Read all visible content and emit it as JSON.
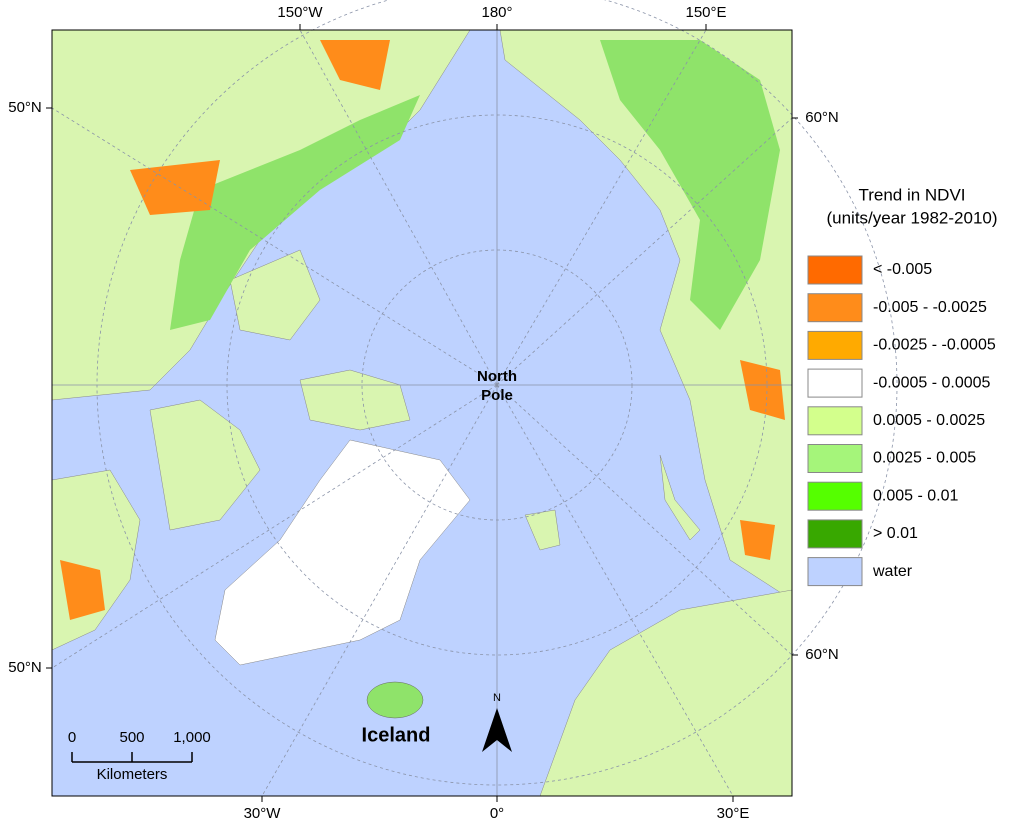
{
  "map": {
    "top_labels": [
      "150°W",
      "180°",
      "150°E"
    ],
    "bottom_labels": [
      "30°W",
      "0°",
      "30°E"
    ],
    "left_labels": [
      "50°N",
      "50°N"
    ],
    "right_labels": [
      "60°N",
      "60°N"
    ],
    "pole_label": [
      "North",
      "Pole"
    ],
    "place_label": "Iceland",
    "north_arrow": "N",
    "scale_bar": {
      "ticks": [
        "0",
        "500",
        "1,000"
      ],
      "unit": "Kilometers"
    },
    "legend": {
      "title": [
        "Trend in NDVI",
        "(units/year 1982-2010)"
      ],
      "items": [
        {
          "label": "< -0.005",
          "color": "#ff6a00"
        },
        {
          "label": "-0.005 - -0.0025",
          "color": "#ff8c1a"
        },
        {
          "label": "-0.0025 - -0.0005",
          "color": "#ffaa00"
        },
        {
          "label": "-0.0005 - 0.0005",
          "color": "#ffffff"
        },
        {
          "label": "0.0005 - 0.0025",
          "color": "#d3ff8c"
        },
        {
          "label": "0.0025 - 0.005",
          "color": "#a5f57a"
        },
        {
          "label": "0.005 - 0.01",
          "color": "#55ff00"
        },
        {
          "label": "> 0.01",
          "color": "#38a800"
        },
        {
          "label": "water",
          "color": "#bed2ff"
        }
      ]
    }
  }
}
